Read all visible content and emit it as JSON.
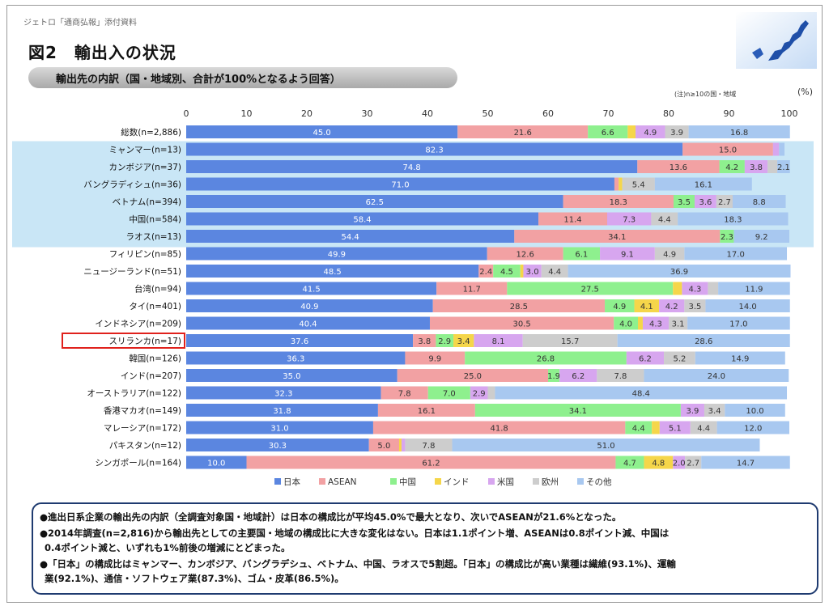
{
  "header": {
    "source_note": "ジェトロ「通商弘報」添付資料",
    "figure_title": "図2　輸出入の状況",
    "subtitle": "輸出先の内訳（国・地域別、合計が100%となるよう回答）",
    "note_small": "(注)n≥10の国・地域",
    "percent_unit": "(%)"
  },
  "chart_data": {
    "type": "bar",
    "orientation": "horizontal",
    "stacked": true,
    "xlim": [
      0,
      100
    ],
    "x_ticks": [
      0,
      10,
      20,
      30,
      40,
      50,
      60,
      70,
      80,
      90,
      100
    ],
    "categories": [
      "総数(n=2,886)",
      "ミャンマー(n=13)",
      "カンボジア(n=37)",
      "バングラディシュ(n=36)",
      "ベトナム(n=394)",
      "中国(n=584)",
      "ラオス(n=13)",
      "フィリピン(n=85)",
      "ニュージーランド(n=51)",
      "台湾(n=94)",
      "タイ(n=401)",
      "インドネシア(n=209)",
      "スリランカ(n=17)",
      "韓国(n=126)",
      "インド(n=207)",
      "オーストラリア(n=122)",
      "香港マカオ(n=149)",
      "マレーシア(n=172)",
      "パキスタン(n=12)",
      "シンガポール(n=164)"
    ],
    "highlight_band_categories": [
      "ミャンマー(n=13)",
      "カンボジア(n=37)",
      "バングラディシュ(n=36)",
      "ベトナム(n=394)",
      "中国(n=584)",
      "ラオス(n=13)"
    ],
    "boxed_category": "スリランカ(n=17)",
    "series": [
      {
        "name": "日本",
        "color": "#5b86e0",
        "values": [
          45.0,
          82.3,
          74.8,
          71.0,
          62.5,
          58.4,
          54.4,
          49.9,
          48.5,
          41.5,
          40.9,
          40.4,
          37.6,
          36.3,
          35.0,
          32.3,
          31.8,
          31.0,
          30.3,
          10.0
        ]
      },
      {
        "name": "ASEAN",
        "color": "#f2a1a3",
        "values": [
          21.6,
          15.0,
          13.6,
          0.7,
          18.3,
          11.4,
          34.1,
          12.6,
          2.4,
          11.7,
          28.5,
          30.5,
          3.8,
          9.9,
          25.0,
          7.8,
          16.1,
          41.8,
          5.0,
          61.2
        ]
      },
      {
        "name": "中国",
        "color": "#8ef08e",
        "values": [
          6.6,
          0.0,
          4.2,
          0.0,
          3.5,
          0.0,
          2.3,
          6.1,
          4.5,
          27.5,
          4.9,
          4.0,
          2.9,
          26.8,
          1.9,
          7.0,
          34.1,
          4.4,
          0.0,
          4.7
        ]
      },
      {
        "name": "インド",
        "color": "#f5d64a",
        "values": [
          1.3,
          0.0,
          0.0,
          0.6,
          0.0,
          0.0,
          0.0,
          0.0,
          0.5,
          1.5,
          4.1,
          0.8,
          3.4,
          0.0,
          0.0,
          0.0,
          0.0,
          1.3,
          0.4,
          4.8
        ]
      },
      {
        "name": "米国",
        "color": "#d7a6ef",
        "values": [
          4.9,
          1.0,
          3.8,
          0.0,
          3.6,
          7.3,
          0.0,
          9.1,
          3.0,
          4.3,
          4.2,
          4.3,
          8.1,
          6.2,
          6.2,
          2.9,
          3.9,
          5.1,
          0.6,
          2.0
        ]
      },
      {
        "name": "欧州",
        "color": "#cdcdcd",
        "values": [
          3.9,
          0.0,
          1.6,
          5.4,
          2.7,
          4.4,
          0.0,
          4.9,
          4.4,
          1.7,
          3.5,
          3.1,
          15.7,
          5.2,
          7.8,
          1.2,
          3.4,
          4.4,
          7.8,
          2.7
        ]
      },
      {
        "name": "その他",
        "color": "#a8c8f0",
        "values": [
          16.8,
          0.9,
          2.1,
          16.1,
          8.8,
          18.3,
          9.2,
          17.0,
          36.9,
          11.9,
          14.0,
          17.0,
          28.6,
          14.9,
          24.0,
          48.4,
          10.0,
          12.0,
          51.0,
          14.7
        ]
      }
    ],
    "legend": [
      "日本",
      "ASEAN",
      "中国",
      "インド",
      "米国",
      "欧州",
      "その他"
    ],
    "legend_position": "bottom"
  },
  "summary": [
    "●進出日系企業の輸出先の内訳（全調査対象国・地域計）は日本の構成比が平均45.0%で最大となり、次いでASEANが21.6%となった。",
    "●2014年調査(n=2,816)から輸出先としての主要国・地域の構成比に大きな変化はない。日本は1.1ポイント増、ASEANは0.8ポイント減、中国は",
    "0.4ポイント減と、いずれも1%前後の増減にとどまった。",
    "●「日本」の構成比はミャンマー、カンボジア、バングラデシュ、ベトナム、中国、ラオスで5割超。「日本」の構成比が高い業種は繊維(93.1%)、運輸",
    "業(92.1%)、通信・ソフトウェア業(87.3%)、ゴム・皮革(86.5%)。"
  ]
}
